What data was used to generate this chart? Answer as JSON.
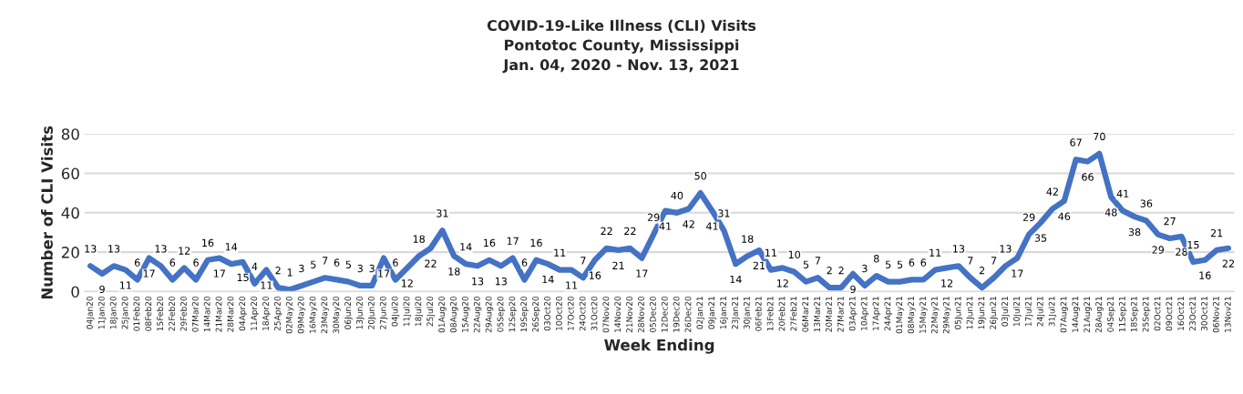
{
  "chart_data": {
    "type": "line",
    "title": "COVID-19-Like Illness (CLI) Visits\nPontotoc County, Mississippi\nJan. 04, 2020 - Nov. 13, 2021",
    "xlabel": "Week Ending",
    "ylabel": "Number of CLI Visits",
    "categories": [
      "04Jan20",
      "11Jan20",
      "18Jan20",
      "25Jan20",
      "01Feb20",
      "08Feb20",
      "15Feb20",
      "22Feb20",
      "29Feb20",
      "07Mar20",
      "14Mar20",
      "21Mar20",
      "28Mar20",
      "04Apr20",
      "11Apr20",
      "18Apr20",
      "25Apr20",
      "02May20",
      "09May20",
      "16May20",
      "23May20",
      "30May20",
      "06Jun20",
      "13Jun20",
      "20Jun20",
      "27Jun20",
      "04Jul20",
      "11Jul20",
      "18Jul20",
      "25Jul20",
      "01Aug20",
      "08Aug20",
      "15Aug20",
      "22Aug20",
      "29Aug20",
      "05Sep20",
      "12Sep20",
      "19Sep20",
      "26Sep20",
      "03Oct20",
      "10Oct20",
      "17Oct20",
      "24Oct20",
      "31Oct20",
      "07Nov20",
      "14Nov20",
      "21Nov20",
      "28Nov20",
      "05Dec20",
      "12Dec20",
      "19Dec20",
      "26Dec20",
      "02Jan21",
      "09Jan21",
      "16Jan21",
      "23Jan21",
      "30Jan21",
      "06Feb21",
      "13Feb21",
      "20Feb21",
      "27Feb21",
      "06Mar21",
      "13Mar21",
      "20Mar21",
      "27Mar21",
      "03Apr21",
      "10Apr21",
      "17Apr21",
      "24Apr21",
      "01May21",
      "08May21",
      "15May21",
      "22May21",
      "29May21",
      "05Jun21",
      "12Jun21",
      "19Jun21",
      "26Jun21",
      "03Jul21",
      "10Jul21",
      "17Jul21",
      "24Jul21",
      "31Jul21",
      "07Aug21",
      "14Aug21",
      "21Aug21",
      "28Aug21",
      "04Sep21",
      "11Sep21",
      "18Sep21",
      "25Sep21",
      "02Oct21",
      "09Oct21",
      "16Oct21",
      "23Oct21",
      "30Oct21",
      "06Nov21",
      "13Nov21"
    ],
    "series": [
      {
        "color": "#4472c4",
        "values": [
          13,
          9,
          13,
          11,
          6,
          17,
          13,
          6,
          12,
          6,
          16,
          17,
          14,
          15,
          4,
          11,
          2,
          1,
          3,
          5,
          7,
          6,
          5,
          3,
          3,
          17,
          6,
          12,
          18,
          22,
          31,
          18,
          14,
          13,
          16,
          13,
          17,
          6,
          16,
          14,
          11,
          11,
          7,
          16,
          22,
          21,
          22,
          17,
          29,
          41,
          40,
          42,
          50,
          41,
          31,
          14,
          18,
          21,
          11,
          12,
          10,
          5,
          7,
          2,
          2,
          9,
          3,
          8,
          5,
          5,
          6,
          6,
          11,
          12,
          13,
          7,
          2,
          7,
          13,
          17,
          29,
          35,
          42,
          46,
          67,
          66,
          70,
          48,
          41,
          38,
          36,
          29,
          27,
          28,
          15,
          16,
          21,
          22
        ]
      }
    ],
    "ylim": [
      0,
      80
    ],
    "yticks": [
      0,
      20,
      40,
      60,
      80
    ],
    "grid": "y",
    "data_labels": true,
    "marker": "none",
    "line_style": "solid",
    "legend": false
  }
}
